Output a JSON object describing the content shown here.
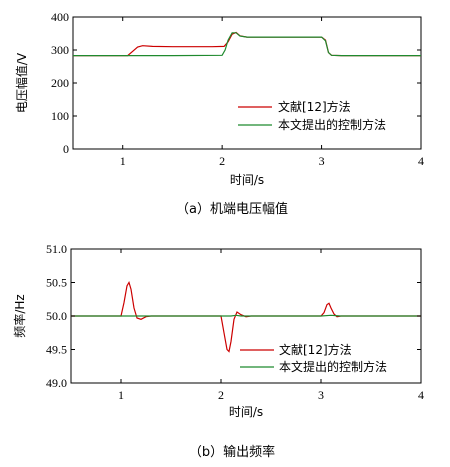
{
  "chart_data": [
    {
      "type": "line",
      "caption": "（a）机端电压幅值",
      "xlabel": "时间/s",
      "ylabel": "电压幅值/V",
      "xlim": [
        0.5,
        4
      ],
      "ylim": [
        0,
        400
      ],
      "xticks": [
        1,
        2,
        3,
        4
      ],
      "yticks": [
        0,
        100,
        200,
        300,
        400
      ],
      "legend_position": "lower-right",
      "series": [
        {
          "name": "文献[12]方法",
          "color": "#cc0000",
          "x": [
            0.5,
            1.05,
            1.1,
            1.15,
            1.2,
            1.3,
            1.5,
            1.9,
            2.02,
            2.06,
            2.1,
            2.14,
            2.18,
            2.25,
            2.5,
            3.0,
            3.04,
            3.07,
            3.1,
            3.2,
            4.0
          ],
          "y": [
            283,
            283,
            296,
            309,
            313,
            311,
            310,
            310,
            311,
            325,
            348,
            353,
            343,
            339,
            339,
            339,
            330,
            292,
            284,
            283,
            283
          ]
        },
        {
          "name": "本文提出的控制方法",
          "color": "#1f8a2e",
          "x": [
            0.5,
            1.0,
            1.5,
            2.0,
            2.03,
            2.06,
            2.1,
            2.14,
            2.18,
            2.25,
            2.5,
            3.0,
            3.04,
            3.07,
            3.1,
            3.2,
            4.0
          ],
          "y": [
            283,
            283,
            283,
            284,
            300,
            330,
            352,
            352,
            342,
            339,
            339,
            339,
            328,
            292,
            284,
            283,
            283
          ]
        }
      ]
    },
    {
      "type": "line",
      "caption": "（b）输出频率",
      "xlabel": "时间/s",
      "ylabel": "频率/Hz",
      "xlim": [
        0.5,
        4
      ],
      "ylim": [
        49.0,
        51.0
      ],
      "xticks": [
        1,
        2,
        3,
        4
      ],
      "yticks": [
        49.0,
        49.5,
        50.0,
        50.5,
        51.0
      ],
      "legend_position": "lower-right",
      "series": [
        {
          "name": "文献[12]方法",
          "color": "#cc0000",
          "x": [
            0.5,
            1.0,
            1.03,
            1.06,
            1.08,
            1.1,
            1.13,
            1.16,
            1.2,
            1.25,
            1.3,
            2.0,
            2.03,
            2.06,
            2.08,
            2.1,
            2.13,
            2.16,
            2.2,
            2.25,
            2.3,
            3.0,
            3.03,
            3.06,
            3.08,
            3.1,
            3.13,
            3.16,
            3.2,
            4.0
          ],
          "y": [
            50.0,
            50.0,
            50.2,
            50.45,
            50.5,
            50.4,
            50.12,
            49.97,
            49.95,
            49.99,
            50.0,
            50.0,
            49.75,
            49.5,
            49.47,
            49.62,
            49.95,
            50.06,
            50.02,
            49.99,
            50.0,
            50.0,
            50.05,
            50.17,
            50.19,
            50.12,
            50.03,
            49.99,
            50.0,
            50.0
          ]
        },
        {
          "name": "本文提出的控制方法",
          "color": "#1f8a2e",
          "x": [
            0.5,
            1.0,
            1.5,
            2.0,
            2.1,
            2.15,
            2.2,
            2.3,
            3.0,
            3.1,
            3.2,
            4.0
          ],
          "y": [
            50.0,
            50.0,
            50.0,
            50.0,
            50.0,
            50.01,
            50.0,
            50.0,
            50.0,
            50.01,
            50.0,
            50.0
          ]
        }
      ]
    }
  ]
}
